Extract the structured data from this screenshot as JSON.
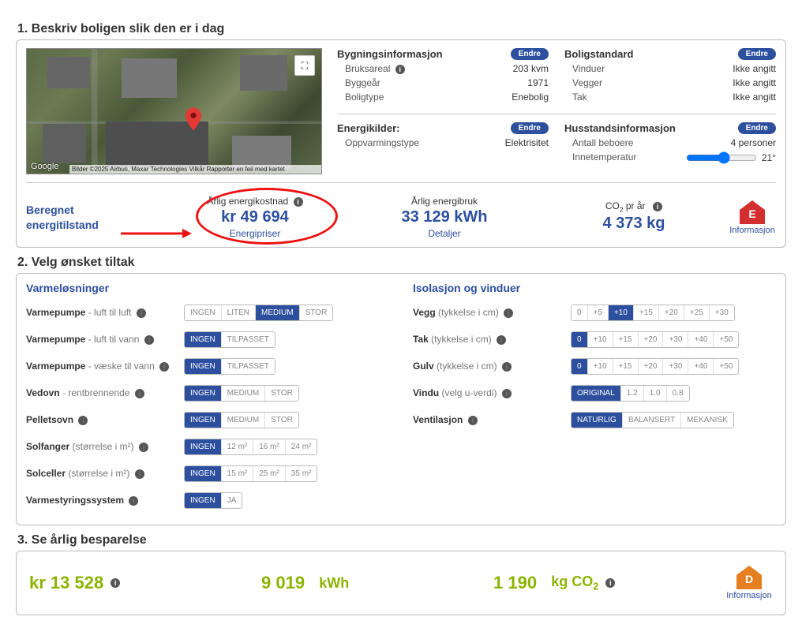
{
  "section1": {
    "title": "1. Beskriv boligen slik den er i dag"
  },
  "section2": {
    "title": "2. Velg ønsket tiltak"
  },
  "section3": {
    "title": "3. Se årlig besparelse"
  },
  "map": {
    "google_label": "Google",
    "attribution": "Bilder ©2025 Airbus, Maxar Technologies    Vilkår    Rapporter en feil med kartet"
  },
  "endre_label": "Endre",
  "building": {
    "header": "Bygningsinformasjon",
    "area_label": "Bruksareal",
    "area_value": "203 kvm",
    "year_label": "Byggeår",
    "year_value": "1971",
    "type_label": "Boligtype",
    "type_value": "Enebolig"
  },
  "standard": {
    "header": "Boligstandard",
    "windows_label": "Vinduer",
    "windows_value": "Ikke angitt",
    "walls_label": "Vegger",
    "walls_value": "Ikke angitt",
    "roof_label": "Tak",
    "roof_value": "Ikke angitt"
  },
  "energy_sources": {
    "header": "Energikilder:",
    "heat_label": "Oppvarmingstype",
    "heat_value": "Elektrisitet"
  },
  "household": {
    "header": "Husstandsinformasjon",
    "people_label": "Antall beboere",
    "people_value": "4 personer",
    "temp_label": "Innetemperatur",
    "temp_value": "21°"
  },
  "calc": {
    "title_line1": "Beregnet",
    "title_line2": "energitilstand",
    "cost_header": "Årlig energikostnad",
    "cost_value": "kr 49 694",
    "cost_link": "Energipriser",
    "use_header": "Årlig energibruk",
    "use_value": "33 129  kWh",
    "use_link": "Detaljer",
    "co2_header_pre": "CO",
    "co2_header_post": " pr år",
    "co2_value": "4 373   kg",
    "info_link": "Informasjon",
    "badge_letter": "E",
    "badge_color": "#d32f2f"
  },
  "heating": {
    "header": "Varmeløsninger",
    "rows": [
      {
        "bold": "Varmepumpe",
        "rest": " - luft til luft",
        "options": [
          "INGEN",
          "LITEN",
          "MEDIUM",
          "STOR"
        ],
        "selected": 2
      },
      {
        "bold": "Varmepumpe",
        "rest": " - luft til vann",
        "options": [
          "INGEN",
          "TILPASSET"
        ],
        "selected": 0
      },
      {
        "bold": "Varmepumpe",
        "rest": " - væske til vann",
        "options": [
          "INGEN",
          "TILPASSET"
        ],
        "selected": 0
      },
      {
        "bold": "Vedovn",
        "rest": " - rentbrennende",
        "options": [
          "INGEN",
          "MEDIUM",
          "STOR"
        ],
        "selected": 0
      },
      {
        "bold": "Pelletsovn",
        "rest": "",
        "options": [
          "INGEN",
          "MEDIUM",
          "STOR"
        ],
        "selected": 0
      },
      {
        "bold": "Solfanger",
        "rest": " (størrelse i m²)",
        "options": [
          "INGEN",
          "12 m²",
          "16 m²",
          "24 m²"
        ],
        "selected": 0
      },
      {
        "bold": "Solceller",
        "rest": " (størrelse i m²)",
        "options": [
          "INGEN",
          "15 m²",
          "25 m²",
          "35 m²"
        ],
        "selected": 0
      },
      {
        "bold": "Varmestyringssystem",
        "rest": "",
        "options": [
          "INGEN",
          "JA"
        ],
        "selected": 0
      }
    ]
  },
  "insulation": {
    "header": "Isolasjon og vinduer",
    "rows": [
      {
        "bold": "Vegg",
        "rest": " (tykkelse i cm)",
        "options": [
          "0",
          "+5",
          "+10",
          "+15",
          "+20",
          "+25",
          "+30"
        ],
        "selected": 2
      },
      {
        "bold": "Tak",
        "rest": " (tykkelse i cm)",
        "options": [
          "0",
          "+10",
          "+15",
          "+20",
          "+30",
          "+40",
          "+50"
        ],
        "selected": 0
      },
      {
        "bold": "Gulv",
        "rest": " (tykkelse i cm)",
        "options": [
          "0",
          "+10",
          "+15",
          "+20",
          "+30",
          "+40",
          "+50"
        ],
        "selected": 0
      },
      {
        "bold": "Vindu",
        "rest": " (velg u-verdi)",
        "options": [
          "ORIGINAL",
          "1.2",
          "1.0",
          "0.8"
        ],
        "selected": 0
      },
      {
        "bold": "Ventilasjon",
        "rest": "",
        "options": [
          "NATURLIG",
          "BALANSERT",
          "MEKANISK"
        ],
        "selected": 0
      }
    ]
  },
  "savings": {
    "cost": "kr 13 528",
    "energy_val": "9 019",
    "energy_unit": "kWh",
    "co2_val": "1 190",
    "co2_unit_pre": "kg CO",
    "badge_letter": "D",
    "badge_color": "#e67e22",
    "info_link": "Informasjon"
  },
  "colors": {
    "primary": "#2c4f9e",
    "annotation": "#e11",
    "savings_green": "#8bb400"
  }
}
